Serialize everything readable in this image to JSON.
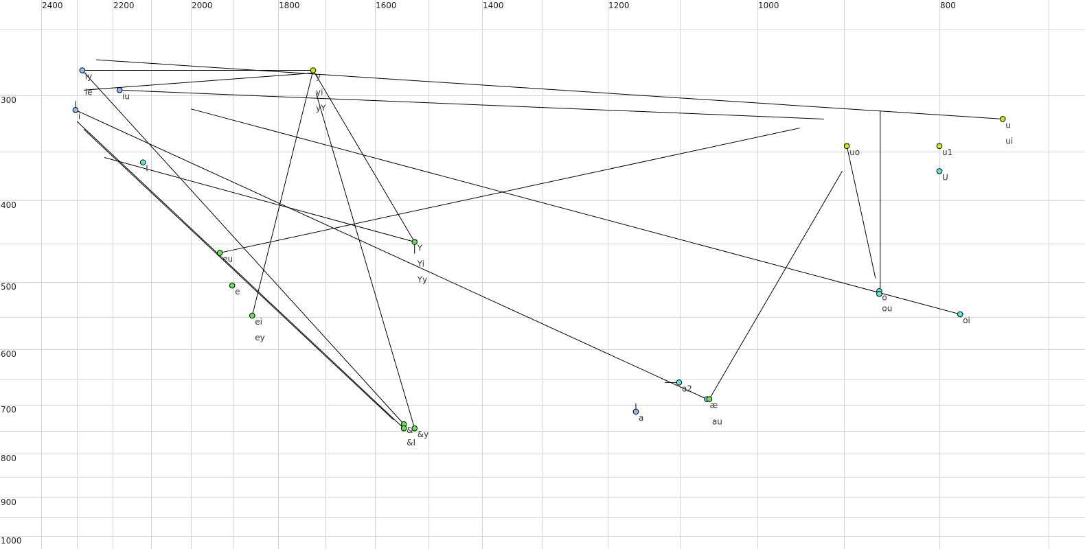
{
  "chart_data": {
    "type": "scatter",
    "title": "",
    "xlabel": "",
    "ylabel": "",
    "x_axis": {
      "quantity": "F2",
      "reversed": true,
      "range": [
        2500,
        650
      ],
      "tick_labels": [
        2400,
        2200,
        2000,
        1800,
        1600,
        1400,
        1200,
        1000,
        800
      ],
      "grid_step": 100
    },
    "y_axis": {
      "quantity": "F1",
      "reversed": true,
      "range": [
        200,
        1020
      ],
      "tick_labels": [
        300,
        400,
        500,
        600,
        700,
        800,
        900,
        1000
      ],
      "grid_step": 50
    },
    "grid": true,
    "colors": {
      "blue": "#8cbcf0",
      "cyan": "#5eeadf",
      "green": "#5ee84c",
      "yellow": "#c6ee00"
    },
    "points": [
      {
        "labels": [
          "iy",
          "ie"
        ],
        "f2": 2285,
        "f1": 281,
        "color": "blue"
      },
      {
        "labels": [
          "iu"
        ],
        "f2": 2182,
        "f1": 296,
        "color": "blue"
      },
      {
        "labels": [
          "i"
        ],
        "f2": 2304,
        "f1": 313,
        "color": "blue"
      },
      {
        "labels": [
          "I"
        ],
        "f2": 2121,
        "f1": 361,
        "color": "cyan"
      },
      {
        "labels": [
          "y",
          "yi",
          "yY"
        ],
        "f2": 1725,
        "f1": 281,
        "color": "yellow"
      },
      {
        "labels": [
          "Y",
          "Yi",
          "Yy"
        ],
        "f2": 1526,
        "f1": 448,
        "color": "green"
      },
      {
        "labels": [
          "eu"
        ],
        "f2": 1932,
        "f1": 462,
        "color": "green"
      },
      {
        "labels": [
          "e"
        ],
        "f2": 1903,
        "f1": 505,
        "color": "green"
      },
      {
        "labels": [
          "ei",
          "ey"
        ],
        "f2": 1858,
        "f1": 548,
        "color": "green"
      },
      {
        "labels": [
          "&"
        ],
        "f2": 1546,
        "f1": 737,
        "color": "green"
      },
      {
        "labels": [
          "&I"
        ],
        "f2": 1546,
        "f1": 745,
        "color": "green"
      },
      {
        "labels": [
          "&y"
        ],
        "f2": 1526,
        "f1": 745,
        "color": "green"
      },
      {
        "labels": [
          "a2"
        ],
        "f2": 1101,
        "f1": 657,
        "color": "cyan"
      },
      {
        "labels": [
          "a"
        ],
        "f2": 1161,
        "f1": 713,
        "color": "blue"
      },
      {
        "labels": [
          "æ"
        ],
        "f2": 1065,
        "f1": 689,
        "color": "blue"
      },
      {
        "labels": [
          "au"
        ],
        "f2": 1062,
        "f1": 689,
        "color": "green"
      },
      {
        "labels": [
          "uo"
        ],
        "f2": 897,
        "f1": 345,
        "color": "yellow"
      },
      {
        "labels": [
          "u1"
        ],
        "f2": 800,
        "f1": 345,
        "color": "yellow"
      },
      {
        "labels": [
          "U"
        ],
        "f2": 800,
        "f1": 370,
        "color": "cyan"
      },
      {
        "labels": [
          "u",
          "ui"
        ],
        "f2": 742,
        "f1": 321,
        "color": "yellow"
      },
      {
        "labels": [
          "o"
        ],
        "f2": 863,
        "f1": 513,
        "color": "cyan"
      },
      {
        "labels": [
          "ou"
        ],
        "f2": 863,
        "f1": 517,
        "color": "cyan"
      },
      {
        "labels": [
          "oi"
        ],
        "f2": 781,
        "f1": 546,
        "color": "cyan"
      }
    ],
    "trajectories": [
      {
        "from": [
          2246,
          273
        ],
        "to": [
          742,
          321
        ]
      },
      {
        "from": [
          2285,
          281
        ],
        "to": [
          1725,
          281
        ]
      },
      {
        "from": [
          2281,
          296
        ],
        "to": [
          1725,
          283
        ]
      },
      {
        "from": [
          2182,
          296
        ],
        "to": [
          923,
          321
        ]
      },
      {
        "from": [
          2000,
          312
        ],
        "to": [
          781,
          546
        ]
      },
      {
        "from": [
          2304,
          313
        ],
        "to": [
          1065,
          689
        ]
      },
      {
        "from": [
          2285,
          281
        ],
        "to": [
          1546,
          737
        ]
      },
      {
        "from": [
          2300,
          323
        ],
        "to": [
          1546,
          745
        ]
      },
      {
        "from": [
          2281,
          330
        ],
        "to": [
          1565,
          729
        ]
      },
      {
        "from": [
          2223,
          356
        ],
        "to": [
          1526,
          448
        ]
      },
      {
        "from": [
          1725,
          281
        ],
        "to": [
          1526,
          448
        ]
      },
      {
        "from": [
          1725,
          281
        ],
        "to": [
          1858,
          548
        ]
      },
      {
        "from": [
          1719,
          298
        ],
        "to": [
          1526,
          745
        ]
      },
      {
        "from": [
          1932,
          462
        ],
        "to": [
          951,
          329
        ]
      },
      {
        "from": [
          1121,
          657
        ],
        "to": [
          1101,
          657
        ]
      },
      {
        "from": [
          1062,
          689
        ],
        "to": [
          902,
          370
        ]
      },
      {
        "from": [
          897,
          345
        ],
        "to": [
          867,
          495
        ]
      },
      {
        "from": [
          862,
          314
        ],
        "to": [
          862,
          513
        ]
      },
      {
        "from": [
          2304,
          305
        ],
        "to": [
          2304,
          313
        ]
      },
      {
        "from": [
          1161,
          697
        ],
        "to": [
          1161,
          713
        ]
      },
      {
        "from": [
          1526,
          448
        ],
        "to": [
          1526,
          463
        ]
      }
    ]
  }
}
